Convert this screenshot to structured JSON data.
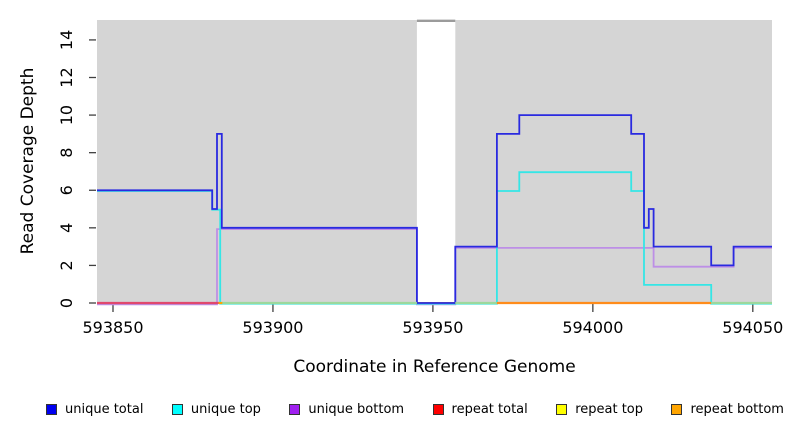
{
  "chart_data": {
    "type": "line",
    "style": "step",
    "title": "",
    "xlabel": "Coordinate in Reference Genome",
    "ylabel": "Read Coverage Depth",
    "xlim": [
      593845,
      594056
    ],
    "ylim": [
      0,
      15.06
    ],
    "xticks": [
      593850,
      593900,
      593950,
      594000,
      594050
    ],
    "yticks": [
      0,
      2,
      4,
      6,
      8,
      10,
      12,
      14
    ],
    "plot_bg_color": "#d5d5d5",
    "masked_region": {
      "x0": 593945,
      "x1": 593957,
      "fill": "#ffffff",
      "top_border_color": "#9b9b9b"
    },
    "series": [
      {
        "name": "repeat total",
        "color": "#e0486e",
        "points": [
          [
            593845,
            0
          ],
          [
            594056,
            0
          ]
        ]
      },
      {
        "name": "repeat top",
        "color": "#ffff00",
        "points": [
          [
            593845,
            0
          ],
          [
            594056,
            0
          ]
        ]
      },
      {
        "name": "repeat bottom",
        "color": "#ffa500",
        "points": [
          [
            593845,
            0
          ],
          [
            594056,
            0
          ]
        ]
      },
      {
        "name": "unique bottom",
        "color": "#bd8fe6",
        "points": [
          [
            593845,
            0
          ],
          [
            593882.5,
            0
          ],
          [
            593882.5,
            4
          ],
          [
            593945,
            4
          ],
          [
            593945,
            0
          ],
          [
            593957,
            0
          ],
          [
            593957,
            3
          ],
          [
            594019,
            3
          ],
          [
            594019,
            2
          ],
          [
            594044,
            2
          ],
          [
            594044,
            3
          ],
          [
            594056,
            3
          ]
        ]
      },
      {
        "name": "unique top",
        "color": "#35e6e6",
        "points": [
          [
            593845,
            6
          ],
          [
            593881,
            6
          ],
          [
            593881,
            5
          ],
          [
            593883.5,
            5
          ],
          [
            593883.5,
            0
          ],
          [
            593970,
            0
          ],
          [
            593970,
            6
          ],
          [
            593977,
            6
          ],
          [
            593977,
            7
          ],
          [
            594012,
            7
          ],
          [
            594012,
            6
          ],
          [
            594016,
            6
          ],
          [
            594016,
            1
          ],
          [
            594037,
            1
          ],
          [
            594037,
            0
          ],
          [
            594056,
            0
          ]
        ]
      },
      {
        "name": "unique total",
        "color": "#2a2ae0",
        "points": [
          [
            593845,
            6
          ],
          [
            593881,
            6
          ],
          [
            593881,
            5
          ],
          [
            593882.5,
            5
          ],
          [
            593882.5,
            9
          ],
          [
            593884,
            9
          ],
          [
            593884,
            4
          ],
          [
            593945,
            4
          ],
          [
            593945,
            0
          ],
          [
            593957,
            0
          ],
          [
            593957,
            3
          ],
          [
            593970,
            3
          ],
          [
            593970,
            9
          ],
          [
            593977,
            9
          ],
          [
            593977,
            10
          ],
          [
            594012,
            10
          ],
          [
            594012,
            9
          ],
          [
            594016,
            9
          ],
          [
            594016,
            4
          ],
          [
            594017.5,
            4
          ],
          [
            594017.5,
            5
          ],
          [
            594019,
            5
          ],
          [
            594019,
            3
          ],
          [
            594037,
            3
          ],
          [
            594037,
            2
          ],
          [
            594044,
            2
          ],
          [
            594044,
            3
          ],
          [
            594056,
            3
          ]
        ]
      }
    ],
    "baseline_segments": [
      {
        "x0": 593845,
        "x1": 593883,
        "color": "#e0486e",
        "name": "repeat-total-at-zero"
      },
      {
        "x0": 593883,
        "x1": 593884.2,
        "color": "#ffa500",
        "name": "repeat-bottom-at-zero"
      },
      {
        "x0": 593884.2,
        "x1": 593945,
        "color": "#9cd89c",
        "name": "overlap-top-strands-at-zero"
      },
      {
        "x0": 593957,
        "x1": 593970,
        "color": "#9cd89c",
        "name": "overlap-top-strands-at-zero"
      },
      {
        "x0": 593970,
        "x1": 594037,
        "color": "#ff8c1a",
        "name": "repeat-bottom-at-zero"
      },
      {
        "x0": 594037,
        "x1": 594056,
        "color": "#9cd89c",
        "name": "overlap-top-strands-at-zero"
      }
    ],
    "legend": [
      {
        "label": "unique total",
        "color": "#0000f0"
      },
      {
        "label": "unique top",
        "color": "#00ffff"
      },
      {
        "label": "unique bottom",
        "color": "#a020f0"
      },
      {
        "label": "repeat total",
        "color": "#ff0000"
      },
      {
        "label": "repeat top",
        "color": "#ffff00"
      },
      {
        "label": "repeat bottom",
        "color": "#ffa500"
      }
    ],
    "tick_color": "#404040",
    "text_color": "#000000"
  }
}
